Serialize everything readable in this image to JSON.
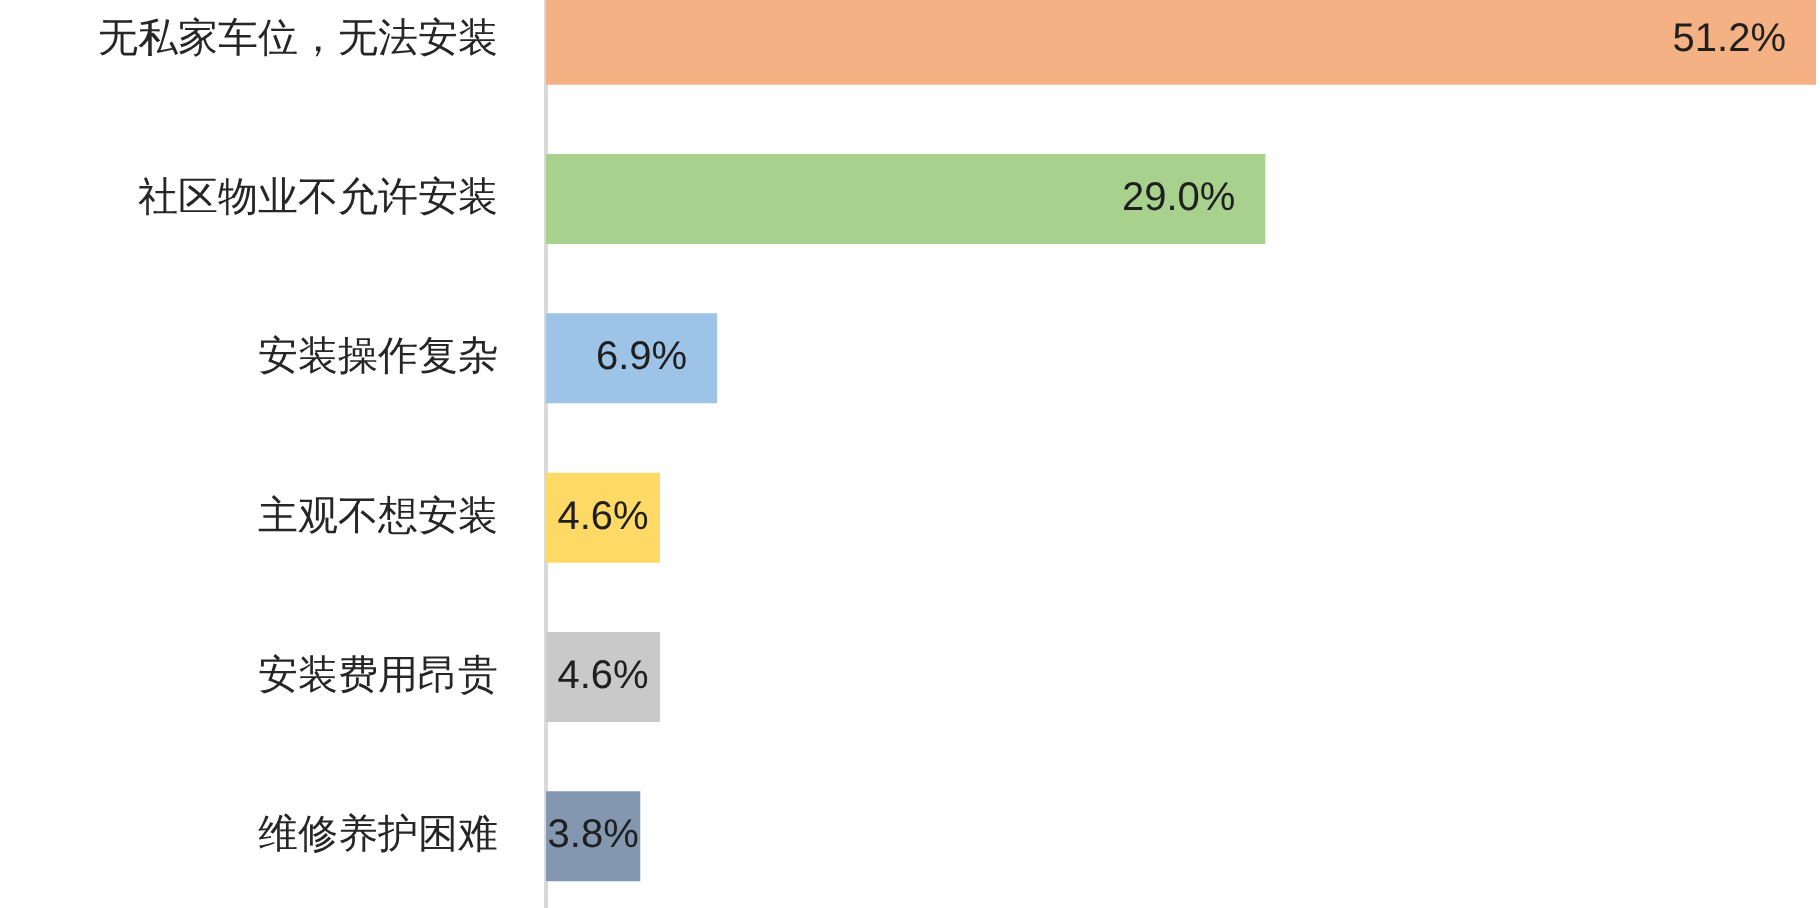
{
  "chart_data": {
    "type": "bar",
    "orientation": "horizontal",
    "categories": [
      "无私家车位，无法安装",
      "社区物业不允许安装",
      "安装操作复杂",
      "主观不想安装",
      "安装费用昂贵",
      "维修养护困难"
    ],
    "values": [
      51.2,
      29.0,
      6.9,
      4.6,
      4.6,
      3.8
    ],
    "colors": [
      "#f4b183",
      "#a9d18e",
      "#9dc3e6",
      "#ffd966",
      "#c9c9c9",
      "#8497b0"
    ],
    "value_labels": [
      "51.2%",
      "29.0%",
      "6.9%",
      "4.6%",
      "4.6%",
      "3.8%"
    ],
    "tick_labels": "y"
  }
}
